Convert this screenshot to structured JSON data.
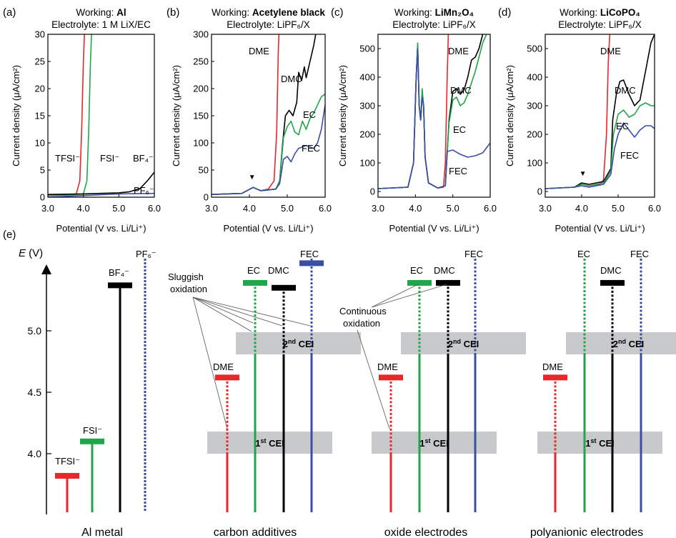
{
  "colors": {
    "red": "#e8262b",
    "green": "#1fa64a",
    "black": "#000000",
    "blue": "#3b4ea6",
    "grey": "#c8c9cb"
  },
  "shared": {
    "ylabel": "Current density (μA/cm²)",
    "xlabel": "Potential (V vs. Li/Li⁺)",
    "xticks": [
      "3.0",
      "4.0",
      "5.0",
      "6.0"
    ]
  },
  "chart_data": [
    {
      "id": "a",
      "type": "line",
      "panel_label": "(a)",
      "title_prefix": "Working: ",
      "title_bold": "Al",
      "subtitle": "Electrolyte: 1 M LiX/EC",
      "xlim": [
        3.0,
        6.0
      ],
      "ylim": [
        0,
        30
      ],
      "yticks": [
        "0",
        "5",
        "10",
        "15",
        "20",
        "25",
        "30"
      ],
      "series": [
        {
          "name": "TFSI⁻",
          "color": "#e8262b",
          "x": [
            3.0,
            3.5,
            3.8,
            3.9,
            3.95,
            4.0,
            4.03
          ],
          "y": [
            0.3,
            0.4,
            0.6,
            3,
            12,
            25,
            30
          ]
        },
        {
          "name": "FSI⁻",
          "color": "#1fa64a",
          "x": [
            3.0,
            3.6,
            4.0,
            4.1,
            4.15,
            4.2,
            4.23
          ],
          "y": [
            0.3,
            0.4,
            0.6,
            3,
            12,
            25,
            30
          ]
        },
        {
          "name": "BF₄⁻",
          "color": "#000000",
          "x": [
            3.0,
            4.0,
            5.0,
            5.3,
            5.6,
            5.8,
            6.0
          ],
          "y": [
            0.5,
            0.6,
            0.8,
            1.0,
            1.6,
            3.0,
            4.6
          ]
        },
        {
          "name": "PF₆⁻",
          "color": "#3b4ea6",
          "x": [
            3.0,
            4.0,
            5.0,
            6.0
          ],
          "y": [
            0.0,
            0.3,
            0.6,
            0.7
          ]
        }
      ]
    },
    {
      "id": "b",
      "type": "line",
      "panel_label": "(b)",
      "title_prefix": "Working: ",
      "title_bold": "Acetylene black",
      "subtitle": "Electrolyte: LiPF₆/X",
      "xlim": [
        3.0,
        6.0
      ],
      "ylim": [
        0,
        300
      ],
      "yticks": [
        "0",
        "50",
        "100",
        "150",
        "200",
        "250",
        "300"
      ],
      "series": [
        {
          "name": "DME",
          "color": "#e8262b",
          "x": [
            3.0,
            3.8,
            4.1,
            4.3,
            4.5,
            4.65,
            4.72,
            4.76,
            4.78
          ],
          "y": [
            5,
            7,
            18,
            12,
            15,
            30,
            120,
            260,
            300
          ]
        },
        {
          "name": "DMC",
          "color": "#000000",
          "x": [
            3.0,
            3.8,
            4.1,
            4.3,
            4.7,
            4.8,
            4.88,
            4.95,
            5.05,
            5.15,
            5.25,
            5.3,
            5.38,
            5.45,
            5.5,
            5.6,
            5.7,
            5.75
          ],
          "y": [
            5,
            7,
            18,
            12,
            15,
            30,
            100,
            150,
            160,
            150,
            175,
            230,
            215,
            240,
            220,
            250,
            280,
            300
          ]
        },
        {
          "name": "EC",
          "color": "#1fa64a",
          "x": [
            3.0,
            3.8,
            4.1,
            4.3,
            4.7,
            4.8,
            4.9,
            5.0,
            5.1,
            5.2,
            5.3,
            5.4,
            5.5,
            5.6,
            5.7,
            5.8,
            5.9,
            6.0
          ],
          "y": [
            5,
            7,
            18,
            12,
            15,
            30,
            110,
            130,
            140,
            120,
            115,
            140,
            125,
            145,
            155,
            170,
            185,
            190
          ]
        },
        {
          "name": "FEC",
          "color": "#3b4ea6",
          "x": [
            3.0,
            3.8,
            4.1,
            4.3,
            4.7,
            4.8,
            4.9,
            5.0,
            5.1,
            5.2,
            5.3,
            5.5,
            5.7,
            5.8,
            5.9,
            6.0
          ],
          "y": [
            5,
            7,
            18,
            12,
            15,
            25,
            70,
            75,
            65,
            80,
            90,
            95,
            90,
            100,
            125,
            170
          ]
        }
      ],
      "annotations": [
        {
          "text": "▼",
          "x": 4.07,
          "y": 30
        }
      ]
    },
    {
      "id": "c",
      "type": "line",
      "panel_label": "(c)",
      "title_prefix": "Working: ",
      "title_bold": "LiMn₂O₄",
      "subtitle": "Electrolyte: LiPF₆/X",
      "xlim": [
        3.0,
        6.0
      ],
      "ylim": [
        -20,
        550
      ],
      "yticks": [
        "0",
        "100",
        "200",
        "300",
        "400",
        "500"
      ],
      "series": [
        {
          "name": "DME",
          "color": "#e8262b",
          "x": [
            3.0,
            3.8,
            3.95,
            4.02,
            4.06,
            4.1,
            4.14,
            4.18,
            4.22,
            4.26,
            4.35,
            4.6,
            4.75,
            4.8,
            4.85,
            4.88
          ],
          "y": [
            10,
            15,
            100,
            400,
            510,
            300,
            250,
            340,
            300,
            120,
            30,
            12,
            15,
            100,
            400,
            550
          ]
        },
        {
          "name": "DMC",
          "color": "#000000",
          "x": [
            3.0,
            3.8,
            3.95,
            4.02,
            4.06,
            4.1,
            4.14,
            4.18,
            4.22,
            4.26,
            4.35,
            4.6,
            4.8,
            4.9,
            5.0,
            5.1,
            5.2,
            5.3,
            5.4,
            5.5,
            5.6,
            5.7,
            5.8
          ],
          "y": [
            10,
            15,
            100,
            400,
            510,
            300,
            250,
            340,
            300,
            120,
            30,
            12,
            20,
            250,
            350,
            360,
            340,
            355,
            400,
            460,
            470,
            500,
            550
          ]
        },
        {
          "name": "EC",
          "color": "#1fa64a",
          "x": [
            3.0,
            3.8,
            3.95,
            4.02,
            4.06,
            4.1,
            4.14,
            4.18,
            4.22,
            4.26,
            4.35,
            4.6,
            4.8,
            4.9,
            5.0,
            5.1,
            5.2,
            5.3,
            5.4,
            5.5,
            5.6,
            5.7,
            5.8,
            5.9
          ],
          "y": [
            10,
            15,
            100,
            400,
            520,
            300,
            250,
            360,
            300,
            120,
            30,
            12,
            20,
            240,
            320,
            330,
            300,
            310,
            340,
            380,
            420,
            470,
            520,
            550
          ]
        },
        {
          "name": "FEC",
          "color": "#3b4ea6",
          "x": [
            3.0,
            3.8,
            3.95,
            4.02,
            4.06,
            4.1,
            4.14,
            4.18,
            4.22,
            4.26,
            4.35,
            4.6,
            4.8,
            4.85,
            5.0,
            5.2,
            5.4,
            5.6,
            5.8,
            6.0
          ],
          "y": [
            10,
            15,
            100,
            400,
            500,
            300,
            250,
            330,
            300,
            120,
            30,
            12,
            20,
            140,
            145,
            130,
            120,
            125,
            135,
            170
          ]
        }
      ]
    },
    {
      "id": "d",
      "type": "line",
      "panel_label": "(d)",
      "title_prefix": "Working: ",
      "title_bold": "LiCoPO₄",
      "subtitle": "Electrolyte: LiPF₆/X",
      "xlim": [
        3.0,
        6.0
      ],
      "ylim": [
        -20,
        550
      ],
      "yticks": [
        "0",
        "100",
        "200",
        "300",
        "400",
        "500"
      ],
      "series": [
        {
          "name": "DME",
          "color": "#e8262b",
          "x": [
            3.0,
            3.8,
            4.0,
            4.2,
            4.5,
            4.6,
            4.68,
            4.73,
            4.77
          ],
          "y": [
            10,
            15,
            25,
            20,
            25,
            40,
            200,
            450,
            550
          ]
        },
        {
          "name": "DMC",
          "color": "#000000",
          "x": [
            3.0,
            3.8,
            4.0,
            4.2,
            4.6,
            4.8,
            4.85,
            4.95,
            5.05,
            5.15,
            5.3,
            5.45,
            5.6,
            5.75,
            5.9,
            6.0
          ],
          "y": [
            10,
            15,
            30,
            25,
            35,
            80,
            250,
            340,
            385,
            390,
            340,
            300,
            320,
            420,
            520,
            550
          ]
        },
        {
          "name": "EC",
          "color": "#1fa64a",
          "x": [
            3.0,
            3.8,
            4.0,
            4.2,
            4.6,
            4.8,
            4.87,
            5.0,
            5.15,
            5.3,
            5.45,
            5.6,
            5.75,
            5.9,
            6.0
          ],
          "y": [
            10,
            15,
            25,
            20,
            30,
            70,
            200,
            270,
            285,
            260,
            270,
            300,
            310,
            300,
            300
          ]
        },
        {
          "name": "FEC",
          "color": "#3b4ea6",
          "x": [
            3.0,
            3.8,
            4.0,
            4.2,
            4.6,
            4.8,
            4.9,
            5.0,
            5.15,
            5.3,
            5.45,
            5.6,
            5.75,
            5.9,
            6.0
          ],
          "y": [
            10,
            15,
            20,
            15,
            25,
            60,
            150,
            200,
            240,
            215,
            190,
            215,
            230,
            230,
            220
          ]
        }
      ],
      "annotations": [
        {
          "text": "▼",
          "x": 4.03,
          "y": 50
        }
      ]
    }
  ],
  "panel_e": {
    "label": "(e)",
    "axis_title_italic": "E",
    "axis_title_unit": " (V)",
    "yticks": [
      "4.0",
      "4.5",
      "5.0"
    ],
    "cei1": "1",
    "cei1_sup": "st",
    "cei2": "2",
    "cei2_sup": "nd",
    "cei_suffix": " CEI",
    "sluggish": [
      "Sluggish",
      "oxidation"
    ],
    "continuous": [
      "Continuous",
      "oxidation"
    ],
    "group_labels": [
      "Al metal",
      "carbon additives",
      "oxide electrodes",
      "polyanionic electrodes"
    ],
    "al_bars": [
      {
        "name": "TFSI⁻",
        "color": "#e8262b",
        "value": 3.82
      },
      {
        "name": "FSI⁻",
        "color": "#1fa64a",
        "value": 4.1
      },
      {
        "name": "BF₄⁻",
        "color": "#000000",
        "value": 5.37
      },
      {
        "name": "PF₆⁻",
        "color": "#3b4ea6",
        "value": 5.55
      }
    ],
    "electrode_bars": {
      "carbon": [
        {
          "name": "DME",
          "color": "#e8262b",
          "value": 4.62
        },
        {
          "name": "EC",
          "color": "#1fa64a",
          "value": 5.39
        },
        {
          "name": "DMC",
          "color": "#000000",
          "value": 5.35
        },
        {
          "name": "FEC",
          "color": "#3b4ea6",
          "value": 5.55
        }
      ],
      "oxide": [
        {
          "name": "DME",
          "color": "#e8262b",
          "value": 4.62
        },
        {
          "name": "EC",
          "color": "#1fa64a",
          "value": 5.39
        },
        {
          "name": "DMC",
          "color": "#000000",
          "value": 5.39
        },
        {
          "name": "FEC",
          "color": "#3b4ea6",
          "value": 5.55
        }
      ],
      "polyanionic": [
        {
          "name": "DME",
          "color": "#e8262b",
          "value": 4.62
        },
        {
          "name": "EC",
          "color": "#1fa64a",
          "value": 5.55
        },
        {
          "name": "DMC",
          "color": "#000000",
          "value": 5.39
        },
        {
          "name": "FEC",
          "color": "#3b4ea6",
          "value": 5.55
        }
      ]
    }
  }
}
